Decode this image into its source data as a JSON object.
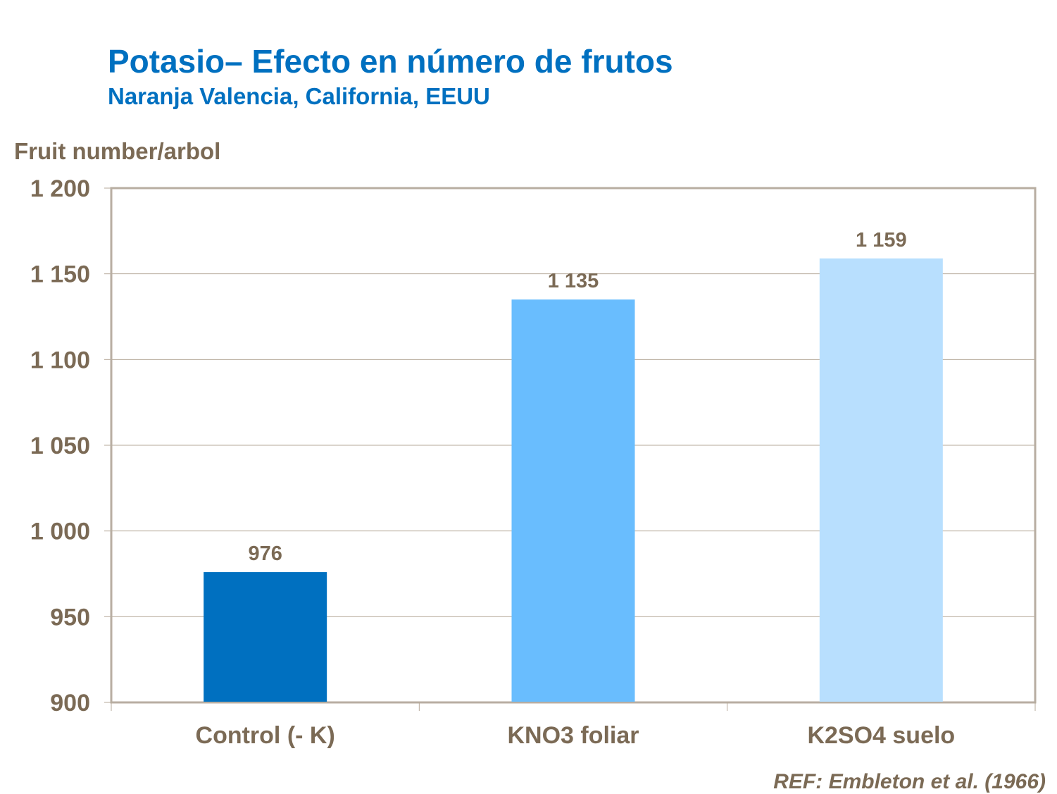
{
  "chart_data": {
    "type": "bar",
    "title": "Potasio– Efecto en número de frutos",
    "subtitle": "Naranja Valencia, California, EEUU",
    "xlabel": "",
    "ylabel": "Fruit number/arbol",
    "categories": [
      "Control (- K)",
      "KNO3 foliar",
      "K2SO4 suelo"
    ],
    "values": [
      976,
      1135,
      1159
    ],
    "data_labels": [
      "976",
      "1 135",
      "1 159"
    ],
    "bar_colors": [
      "#0070c0",
      "#69bdfe",
      "#b8dffe"
    ],
    "ylim": [
      900,
      1200
    ],
    "yticks": [
      900,
      950,
      1000,
      1050,
      1100,
      1150,
      1200
    ],
    "ytick_labels": [
      "900",
      "950",
      "1 000",
      "1 050",
      "1 100",
      "1 150",
      "1 200"
    ],
    "grid": true,
    "legend": "none",
    "annotation": "REF: Embleton et al. (1966)"
  }
}
